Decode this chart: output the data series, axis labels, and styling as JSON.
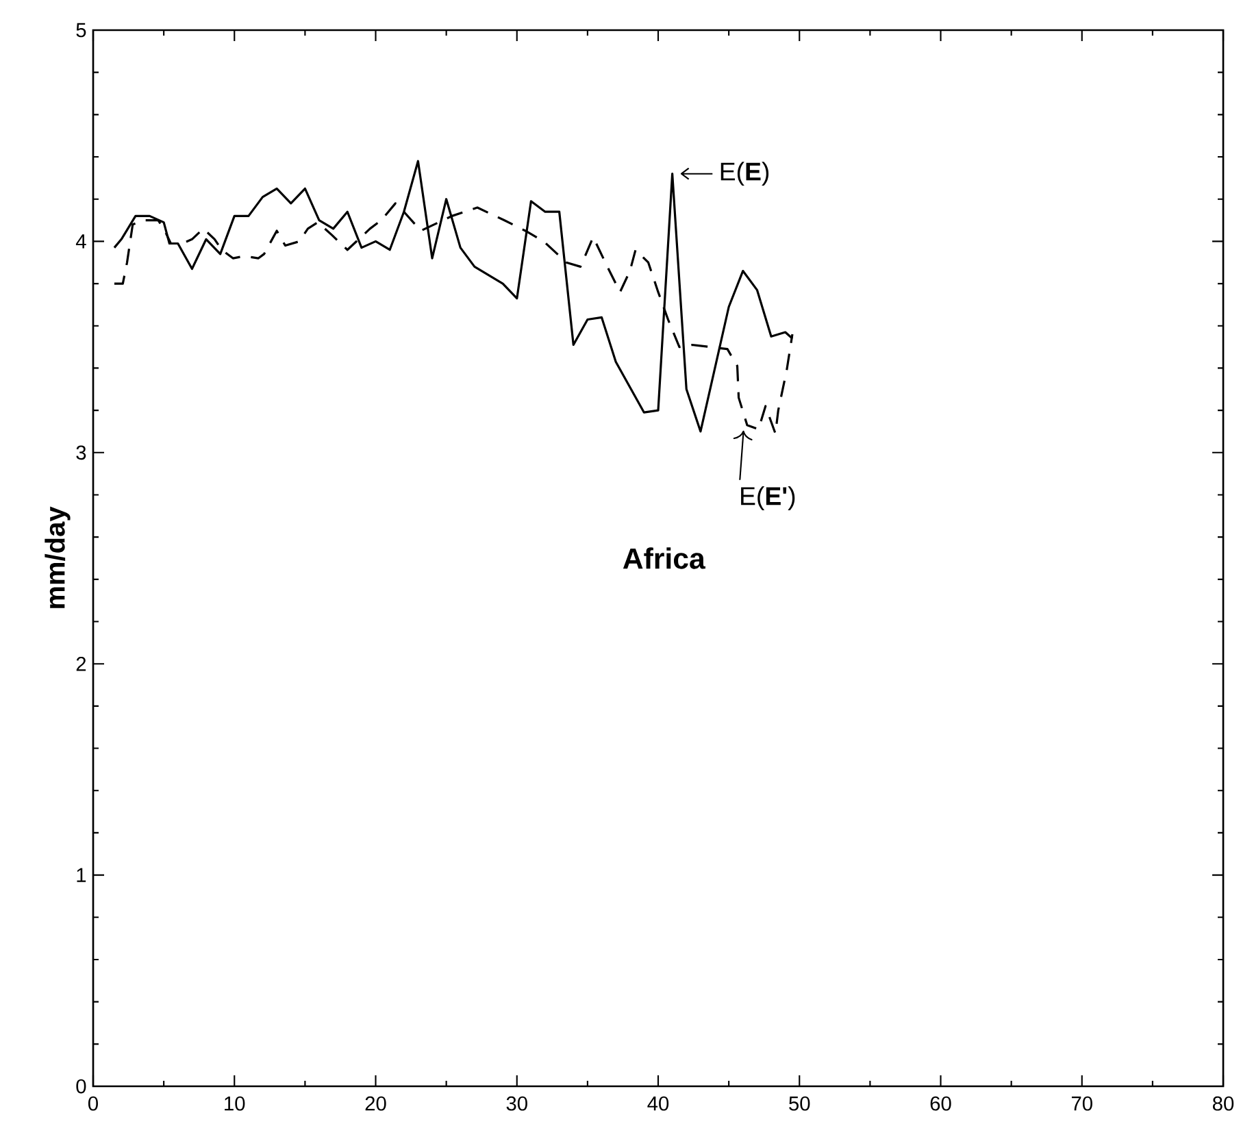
{
  "chart_data": {
    "type": "line",
    "ylabel": "mm/day",
    "xlim": [
      0,
      80
    ],
    "ylim": [
      0,
      5
    ],
    "xticks": [
      0,
      10,
      20,
      30,
      40,
      50,
      60,
      70,
      80
    ],
    "yticks": [
      0,
      1,
      2,
      3,
      4,
      5
    ],
    "annotations": [
      "Africa",
      {
        "text": "E(**E**)",
        "x": 41,
        "y": 4.32
      },
      {
        "text": "E(**E'**)",
        "x": 46.3,
        "y": 3.13
      }
    ],
    "series": [
      {
        "color": "#000000",
        "line_style": "solid",
        "x": [
          1.5,
          2,
          3,
          4,
          5,
          5.4,
          6,
          7,
          8,
          9,
          10,
          11,
          12,
          13,
          14,
          15,
          16,
          17,
          18,
          19,
          20,
          21,
          22,
          23,
          24,
          25,
          26,
          27,
          29,
          30,
          31,
          32,
          33,
          34,
          35,
          36,
          37,
          38,
          39,
          40,
          41,
          42,
          43,
          45,
          46,
          47,
          48,
          49,
          49.5
        ],
        "values": [
          3.97,
          4.01,
          4.12,
          4.12,
          4.09,
          3.99,
          3.99,
          3.87,
          4.01,
          3.94,
          4.12,
          4.12,
          4.21,
          4.25,
          4.18,
          4.25,
          4.1,
          4.06,
          4.14,
          3.97,
          4.0,
          3.96,
          4.14,
          4.38,
          3.92,
          4.2,
          3.97,
          3.88,
          3.8,
          3.73,
          4.19,
          4.14,
          4.14,
          3.51,
          3.63,
          3.64,
          3.43,
          3.31,
          3.19,
          3.2,
          4.32,
          3.3,
          3.1,
          3.69,
          3.86,
          3.77,
          3.55,
          3.57,
          3.54
        ]
      },
      {
        "color": "#000000",
        "line_style": "dashed",
        "x": [
          1.5,
          2.1,
          2.4,
          2.8,
          3.6,
          4.6,
          5,
          5.5,
          6.3,
          7,
          7.8,
          8.6,
          9.1,
          9.9,
          10.7,
          11.7,
          12.1,
          13,
          13.6,
          14.6,
          15.2,
          15.9,
          16.9,
          18,
          18.8,
          19.6,
          20.4,
          21.4,
          22,
          23.2,
          25.4,
          27.2,
          29.1,
          30.6,
          31.9,
          33.5,
          34.5,
          35.4,
          36.4,
          37.3,
          38,
          38.4,
          39.3,
          40,
          40.7,
          41.5,
          42.4,
          43.7,
          44.9,
          45.6,
          45.7,
          46.3,
          47.1,
          47.6,
          48.3,
          48.5,
          49.1,
          49.5
        ],
        "values": [
          3.8,
          3.8,
          3.9,
          4.08,
          4.1,
          4.1,
          4.06,
          3.99,
          3.99,
          4.01,
          4.06,
          4.01,
          3.96,
          3.92,
          3.93,
          3.92,
          3.94,
          4.05,
          3.98,
          4.0,
          4.06,
          4.09,
          4.03,
          3.96,
          4.01,
          4.06,
          4.1,
          4.18,
          4.14,
          4.05,
          4.12,
          4.16,
          4.1,
          4.05,
          4.0,
          3.9,
          3.88,
          4.02,
          3.88,
          3.76,
          3.86,
          3.96,
          3.9,
          3.76,
          3.63,
          3.5,
          3.51,
          3.5,
          3.49,
          3.41,
          3.26,
          3.13,
          3.11,
          3.22,
          3.09,
          3.2,
          3.39,
          3.56
        ]
      }
    ]
  }
}
